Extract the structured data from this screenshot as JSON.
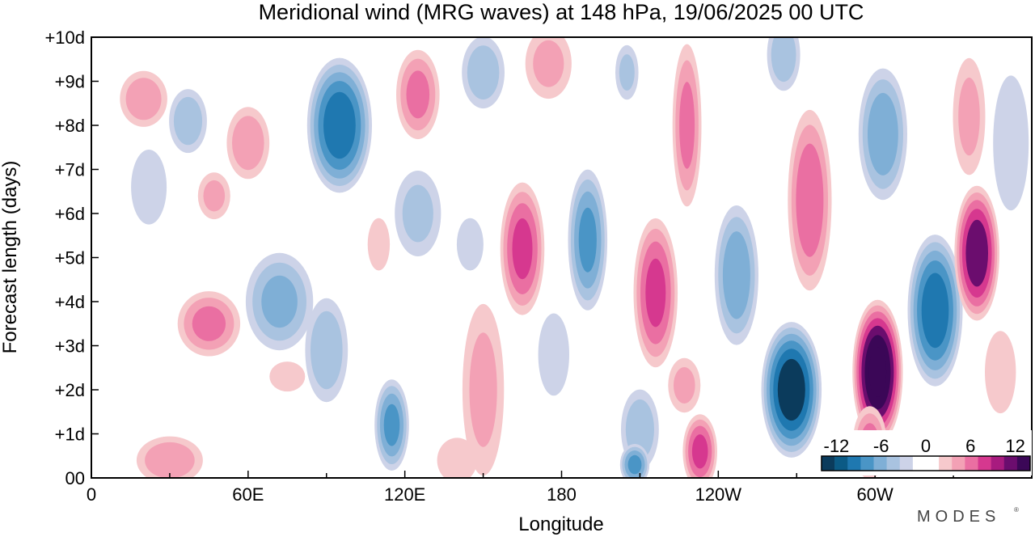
{
  "chart_data": {
    "type": "heatmap",
    "title": "Meridional wind (MRG waves) at  148 hPa,  19/06/2025  00 UTC",
    "xlabel": "Longitude",
    "ylabel": "Forecast length (days)",
    "x_ticks": [
      "0",
      "60E",
      "120E",
      "180",
      "120W",
      "60W"
    ],
    "y_ticks": [
      "00",
      "+1d",
      "+2d",
      "+3d",
      "+4d",
      "+5d",
      "+6d",
      "+7d",
      "+8d",
      "+9d",
      "+10d"
    ],
    "xlim_deg_east": [
      0,
      360
    ],
    "ylim_days": [
      0,
      10
    ],
    "colorbar": {
      "ticks": [
        "-12",
        "-6",
        "0",
        "6",
        "12"
      ],
      "range": [
        -14,
        14
      ],
      "colors": [
        "#0b3b5c",
        "#0b5a85",
        "#1f78b0",
        "#4a95c6",
        "#7fafd6",
        "#a9c3e0",
        "#cdd3e8",
        "#ffffff",
        "#ffffff",
        "#f6c9cc",
        "#f3a1b5",
        "#ea6fa2",
        "#d6388f",
        "#a81b7f",
        "#6b0d6e",
        "#3b0757"
      ]
    },
    "blobs": [
      {
        "lon": 20,
        "day": 8.6,
        "rlon": 10,
        "rday": 0.7,
        "v": 5
      },
      {
        "lon": 37,
        "day": 8.1,
        "rlon": 8,
        "rday": 0.8,
        "v": -5
      },
      {
        "lon": 60,
        "day": 7.6,
        "rlon": 9,
        "rday": 0.9,
        "v": 5
      },
      {
        "lon": 47,
        "day": 6.4,
        "rlon": 7,
        "rday": 0.6,
        "v": 4
      },
      {
        "lon": 22,
        "day": 6.6,
        "rlon": 8,
        "rday": 1.0,
        "v": -3
      },
      {
        "lon": 45,
        "day": 3.5,
        "rlon": 13,
        "rday": 0.8,
        "v": 6
      },
      {
        "lon": 95,
        "day": 8.0,
        "rlon": 13,
        "rday": 1.6,
        "v": -11
      },
      {
        "lon": 72,
        "day": 4.0,
        "rlon": 14,
        "rday": 1.2,
        "v": -6
      },
      {
        "lon": 90,
        "day": 2.9,
        "rlon": 9,
        "rday": 1.3,
        "v": -5
      },
      {
        "lon": 115,
        "day": 1.2,
        "rlon": 7,
        "rday": 1.1,
        "v": -8
      },
      {
        "lon": 30,
        "day": 0.4,
        "rlon": 14,
        "rday": 0.6,
        "v": 5
      },
      {
        "lon": 75,
        "day": 2.3,
        "rlon": 8,
        "rday": 0.4,
        "v": 3
      },
      {
        "lon": 125,
        "day": 8.7,
        "rlon": 9,
        "rday": 1.1,
        "v": 6
      },
      {
        "lon": 150,
        "day": 9.2,
        "rlon": 9,
        "rday": 0.9,
        "v": -5
      },
      {
        "lon": 125,
        "day": 6.0,
        "rlon": 10,
        "rday": 1.1,
        "v": -4
      },
      {
        "lon": 145,
        "day": 5.3,
        "rlon": 6,
        "rday": 0.7,
        "v": -3
      },
      {
        "lon": 110,
        "day": 5.3,
        "rlon": 5,
        "rday": 0.7,
        "v": 3
      },
      {
        "lon": 165,
        "day": 5.2,
        "rlon": 9,
        "rday": 1.6,
        "v": 8
      },
      {
        "lon": 150,
        "day": 2.0,
        "rlon": 9,
        "rday": 2.2,
        "v": 4
      },
      {
        "lon": 140,
        "day": 0.4,
        "rlon": 9,
        "rday": 0.6,
        "v": 3
      },
      {
        "lon": 190,
        "day": 5.4,
        "rlon": 8,
        "rday": 1.7,
        "v": -8
      },
      {
        "lon": 177,
        "day": 2.8,
        "rlon": 7,
        "rday": 1.1,
        "v": -3
      },
      {
        "lon": 175,
        "day": 9.4,
        "rlon": 10,
        "rday": 0.9,
        "v": 4
      },
      {
        "lon": 216,
        "day": 4.2,
        "rlon": 9,
        "rday": 1.8,
        "v": 8
      },
      {
        "lon": 228,
        "day": 8.0,
        "rlon": 6,
        "rday": 2.0,
        "v": 6
      },
      {
        "lon": 205,
        "day": 9.2,
        "rlon": 5,
        "rday": 0.7,
        "v": -4
      },
      {
        "lon": 210,
        "day": 1.1,
        "rlon": 8,
        "rday": 1.0,
        "v": -5
      },
      {
        "lon": 208,
        "day": 0.3,
        "rlon": 6,
        "rday": 0.5,
        "v": -8
      },
      {
        "lon": 233,
        "day": 0.6,
        "rlon": 7,
        "rday": 0.9,
        "v": 8
      },
      {
        "lon": 227,
        "day": 2.1,
        "rlon": 7,
        "rday": 0.7,
        "v": 4
      },
      {
        "lon": 247,
        "day": 4.6,
        "rlon": 9,
        "rday": 1.7,
        "v": -7
      },
      {
        "lon": 275,
        "day": 6.3,
        "rlon": 9,
        "rday": 2.2,
        "v": 7
      },
      {
        "lon": 265,
        "day": 9.6,
        "rlon": 7,
        "rday": 0.9,
        "v": -5
      },
      {
        "lon": 268,
        "day": 2.0,
        "rlon": 12,
        "rday": 1.6,
        "v": -13
      },
      {
        "lon": 301,
        "day": 2.4,
        "rlon": 10,
        "rday": 1.7,
        "v": 14
      },
      {
        "lon": 298,
        "day": 0.8,
        "rlon": 7,
        "rday": 0.9,
        "v": 6
      },
      {
        "lon": 303,
        "day": 7.8,
        "rlon": 10,
        "rday": 1.6,
        "v": -7
      },
      {
        "lon": 323,
        "day": 3.8,
        "rlon": 11,
        "rday": 1.8,
        "v": -11
      },
      {
        "lon": 336,
        "day": 8.2,
        "rlon": 7,
        "rday": 1.5,
        "v": 4
      },
      {
        "lon": 339,
        "day": 5.1,
        "rlon": 9,
        "rday": 1.6,
        "v": 11
      },
      {
        "lon": 352,
        "day": 7.6,
        "rlon": 8,
        "rday": 1.8,
        "v": -3
      },
      {
        "lon": 348,
        "day": 2.4,
        "rlon": 7,
        "rday": 1.1,
        "v": 3
      }
    ]
  },
  "branding": {
    "logo_text": "MODES",
    "logo_mark": "®"
  }
}
